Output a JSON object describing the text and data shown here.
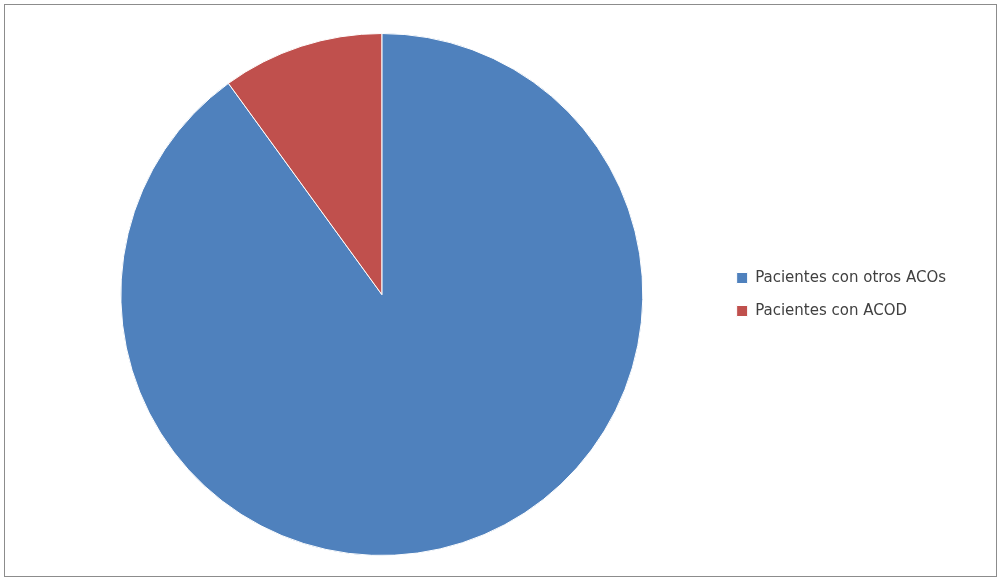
{
  "chart_data": {
    "type": "pie",
    "categories": [
      "Pacientes con otros ACOs",
      "Pacientes con ACOD"
    ],
    "values": [
      90,
      10
    ],
    "colors": [
      "#4f81bd",
      "#c0504d"
    ],
    "legend": "right"
  }
}
